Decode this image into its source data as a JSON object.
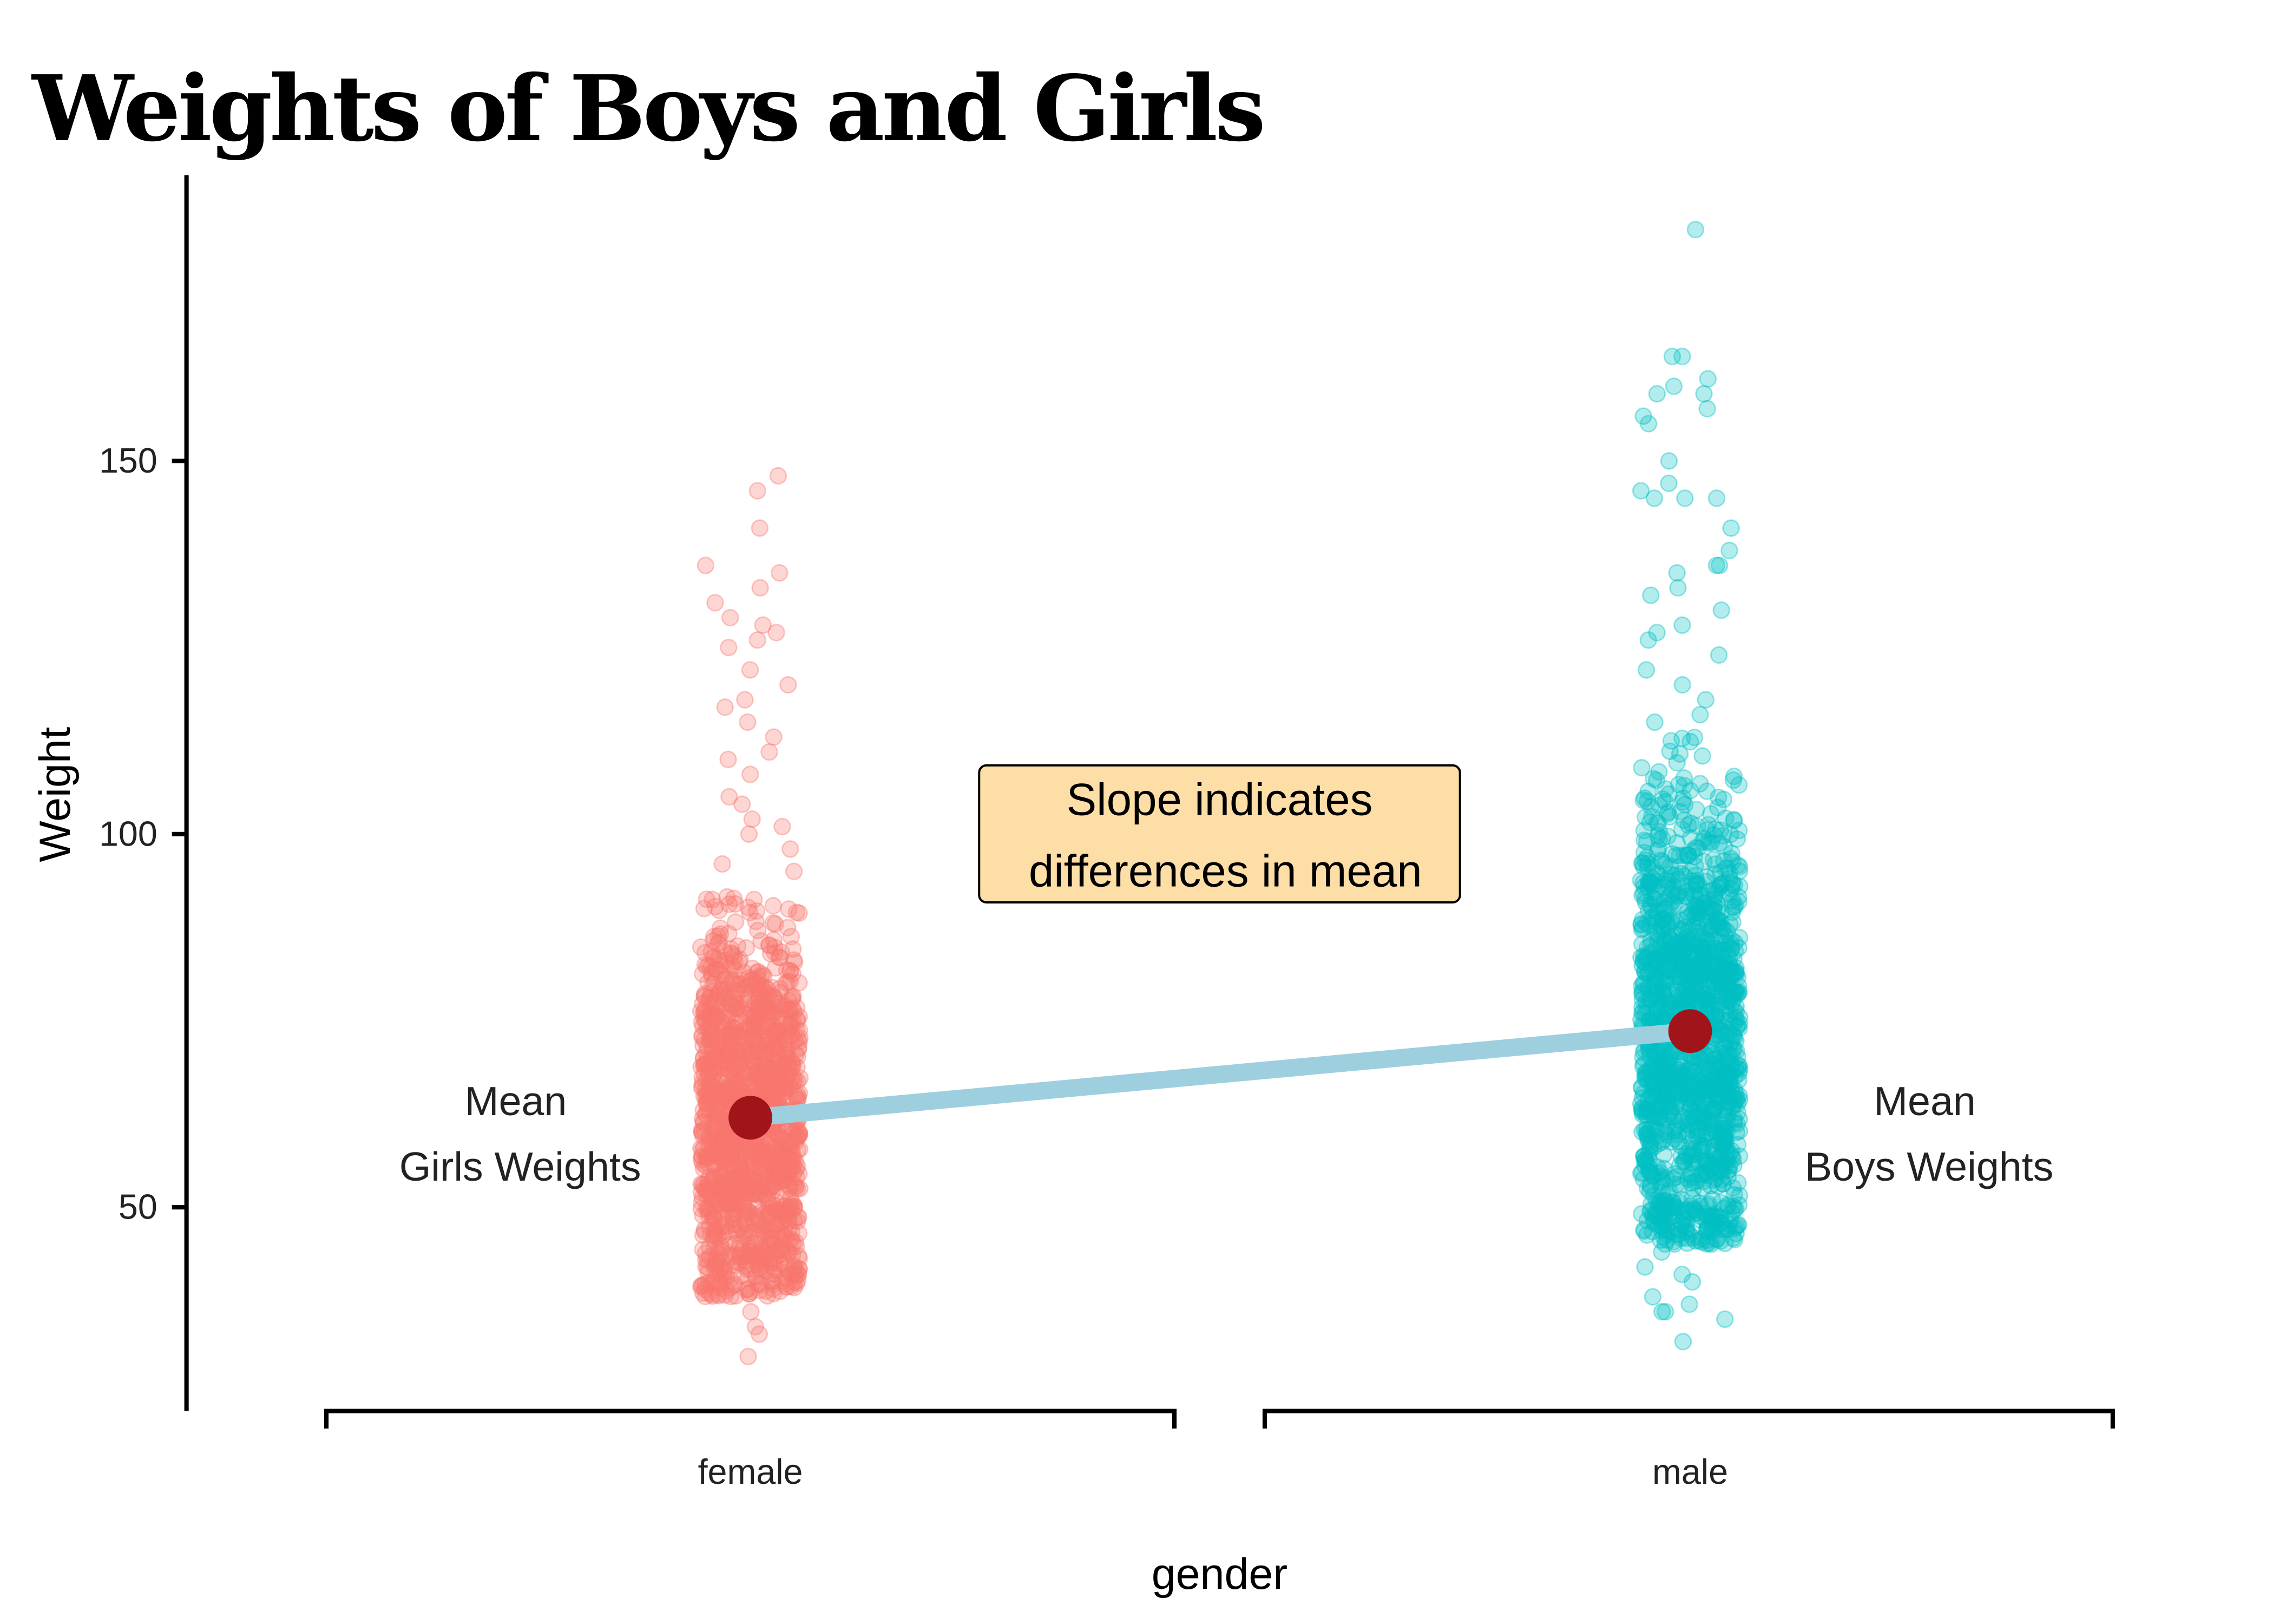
{
  "chart_data": {
    "type": "scatter",
    "title": "Weights of Boys and Girls",
    "xlabel": "gender",
    "ylabel": "Weight",
    "categories": [
      "female",
      "male"
    ],
    "ylim": [
      22.7,
      188.3
    ],
    "yticks": [
      50,
      100,
      150
    ],
    "grid": false,
    "legend": "none",
    "series": [
      {
        "name": "female",
        "color": "#F8766D",
        "n": 1500,
        "mean": 62,
        "sd": 14,
        "dense_range": [
          38,
          92
        ],
        "min": 30,
        "max": 148,
        "outliers": [
          148,
          146,
          141,
          136,
          135,
          133,
          131,
          129,
          128,
          127,
          126,
          125,
          122,
          120,
          118,
          117,
          115,
          113,
          111,
          110,
          108,
          105,
          104,
          102,
          101,
          100,
          98,
          96,
          95,
          36,
          34,
          33,
          30
        ]
      },
      {
        "name": "male",
        "color": "#00BFC4",
        "n": 1500,
        "mean": 73.6,
        "sd": 17,
        "dense_range": [
          45,
          113
        ],
        "min": 32,
        "max": 181,
        "outliers": [
          181,
          164,
          164,
          161,
          160,
          159,
          159,
          157,
          156,
          155,
          150,
          147,
          146,
          145,
          145,
          145,
          141,
          138,
          136,
          136,
          135,
          133,
          132,
          130,
          128,
          127,
          126,
          124,
          122,
          120,
          118,
          116,
          115,
          44,
          42,
          41,
          40,
          38,
          37,
          36,
          36,
          35,
          32
        ]
      }
    ],
    "means": {
      "female": 62,
      "male": 73.6
    },
    "mean_color": "#A0141A",
    "line_color": "#9ECFDF",
    "annotations": {
      "female_label": [
        "Mean",
        "Girls Weights"
      ],
      "male_label": [
        "Mean",
        "Boys Weights"
      ],
      "box_label": [
        "Slope indicates",
        "differences in mean"
      ],
      "box_fill": "#FDDEA6"
    }
  }
}
